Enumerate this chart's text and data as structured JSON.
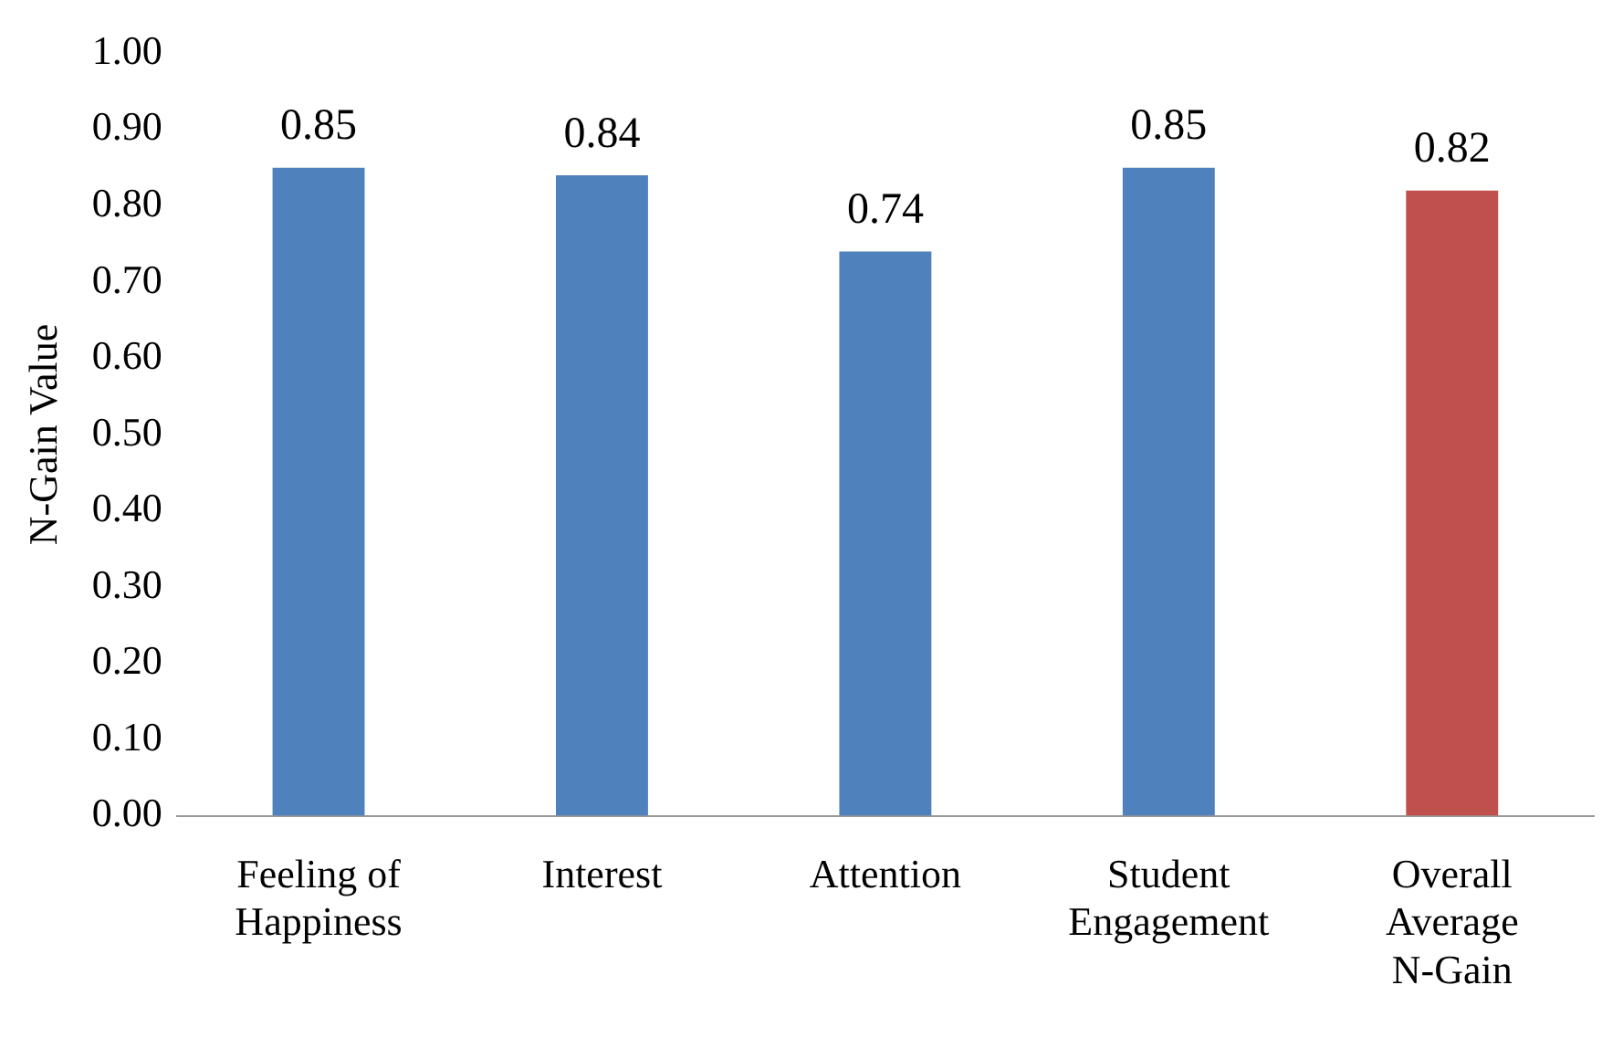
{
  "chart_data": {
    "type": "bar",
    "ylabel": "N-Gain Value",
    "categories": [
      "Feeling of Happiness",
      "Interest",
      "Attention",
      "Student Engagement",
      "Overall Average N-Gain"
    ],
    "values": [
      0.85,
      0.84,
      0.74,
      0.85,
      0.82
    ],
    "colors": [
      "#4f81bd",
      "#4f81bd",
      "#4f81bd",
      "#4f81bd",
      "#c0504d"
    ],
    "ylim": [
      0,
      1
    ],
    "yticks": [
      {
        "value": 0,
        "label": "0.00"
      },
      {
        "value": 0.1,
        "label": "0.10"
      },
      {
        "value": 0.2,
        "label": "0.20"
      },
      {
        "value": 0.3,
        "label": "0.30"
      },
      {
        "value": 0.4,
        "label": "0.40"
      },
      {
        "value": 0.5,
        "label": "0.50"
      },
      {
        "value": 0.6,
        "label": "0.60"
      },
      {
        "value": 0.7,
        "label": "0.70"
      },
      {
        "value": 0.8,
        "label": "0.80"
      },
      {
        "value": 0.9,
        "label": "0.90"
      },
      {
        "value": 1,
        "label": "1.00"
      }
    ],
    "data_labels": true,
    "grid": false,
    "legend": false
  }
}
